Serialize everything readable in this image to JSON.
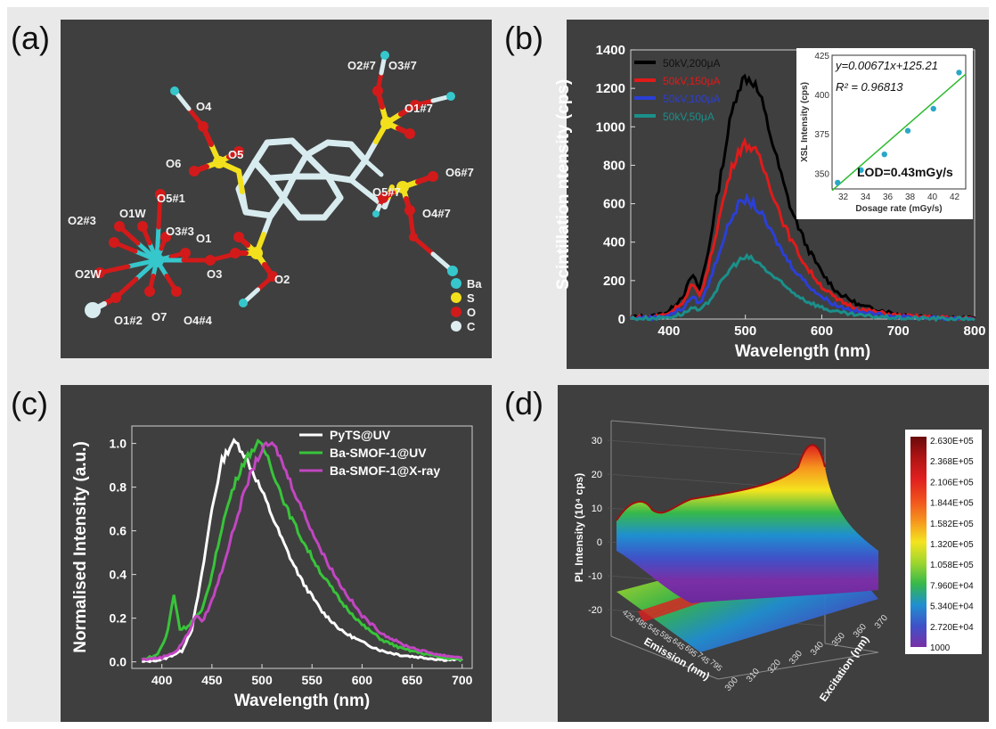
{
  "panel_labels": {
    "a": "(a)",
    "b": "(b)",
    "c": "(c)",
    "d": "(d)"
  },
  "panel_a": {
    "atom_labels": [
      "O2#7",
      "O3#7",
      "O1#7",
      "O4",
      "O6",
      "O5",
      "O6#7",
      "O5#7",
      "O4#7",
      "O5#1",
      "O2#3",
      "O1W",
      "O3#3",
      "O1",
      "O2W",
      "O3",
      "O2",
      "O7",
      "O1#2",
      "O4#4"
    ],
    "legend": [
      {
        "symbol": "Ba",
        "color": "#35c7cc"
      },
      {
        "symbol": "S",
        "color": "#f2e01d"
      },
      {
        "symbol": "O",
        "color": "#d21a1a"
      },
      {
        "symbol": "C",
        "color": "#dfeef0"
      }
    ]
  },
  "chart_data": [
    {
      "id": "b",
      "type": "line",
      "xlabel": "Wavelength (nm)",
      "ylabel": "Scintillation ntensity (cps)",
      "xlim": [
        350,
        800
      ],
      "ylim": [
        0,
        1400
      ],
      "xticks": [
        400,
        500,
        600,
        700,
        800
      ],
      "yticks": [
        0,
        200,
        400,
        600,
        800,
        1000,
        1200,
        1400
      ],
      "legend_position": "top-left",
      "series": [
        {
          "name": "50kV,200μA",
          "color": "#000000",
          "peak": 1260,
          "x": [
            350,
            380,
            400,
            420,
            430,
            440,
            450,
            460,
            470,
            480,
            490,
            500,
            510,
            520,
            530,
            540,
            550,
            560,
            580,
            600,
            620,
            650,
            700,
            750,
            800
          ],
          "y": [
            10,
            15,
            40,
            130,
            230,
            160,
            320,
            560,
            800,
            1030,
            1200,
            1260,
            1240,
            1150,
            1000,
            850,
            700,
            570,
            380,
            240,
            140,
            70,
            25,
            10,
            5
          ]
        },
        {
          "name": "50kV,150μA",
          "color": "#e11a1a",
          "peak": 910,
          "x": [
            350,
            380,
            400,
            420,
            430,
            440,
            450,
            460,
            470,
            480,
            490,
            500,
            510,
            520,
            530,
            540,
            550,
            560,
            580,
            600,
            620,
            650,
            700,
            750,
            800
          ],
          "y": [
            8,
            12,
            30,
            95,
            180,
            120,
            240,
            420,
            600,
            760,
            870,
            910,
            890,
            820,
            720,
            610,
            500,
            410,
            270,
            170,
            100,
            50,
            18,
            8,
            4
          ]
        },
        {
          "name": "50kV,100μA",
          "color": "#2b3fd6",
          "peak": 620,
          "x": [
            350,
            380,
            400,
            420,
            430,
            440,
            450,
            460,
            470,
            480,
            490,
            500,
            510,
            520,
            530,
            540,
            550,
            560,
            580,
            600,
            620,
            650,
            700,
            750,
            800
          ],
          "y": [
            5,
            8,
            20,
            60,
            120,
            80,
            160,
            280,
            400,
            510,
            590,
            620,
            600,
            550,
            480,
            410,
            340,
            280,
            185,
            115,
            70,
            35,
            12,
            5,
            3
          ]
        },
        {
          "name": "50kV,50μA",
          "color": "#1b8f8a",
          "peak": 320,
          "x": [
            350,
            380,
            400,
            420,
            430,
            440,
            450,
            460,
            470,
            480,
            490,
            500,
            510,
            520,
            530,
            540,
            550,
            560,
            580,
            600,
            620,
            650,
            700,
            750,
            800
          ],
          "y": [
            3,
            5,
            10,
            30,
            60,
            40,
            80,
            140,
            200,
            260,
            300,
            320,
            310,
            280,
            245,
            210,
            175,
            145,
            95,
            60,
            35,
            18,
            6,
            3,
            2
          ]
        }
      ],
      "inset": {
        "type": "scatter",
        "xlabel": "Dosage rate (mGy/s)",
        "ylabel": "XSL Intensity (cps)",
        "xlim": [
          31,
          43
        ],
        "ylim": [
          340,
          425
        ],
        "xticks": [
          32,
          34,
          36,
          38,
          40,
          42
        ],
        "yticks": [
          350,
          375,
          400,
          425
        ],
        "fit_equation": "y=0.00671x+125.21",
        "r2_label": "R² = 0.96813",
        "lod_label": "LOD=0.43mGy/s",
        "points": {
          "x": [
            31.5,
            33.6,
            35.7,
            37.8,
            40.1,
            42.4
          ],
          "y": [
            344,
            352,
            362,
            377,
            391,
            414
          ]
        },
        "fit_line": {
          "x": [
            31,
            43
          ],
          "y": [
            339,
            413
          ]
        }
      }
    },
    {
      "id": "c",
      "type": "line",
      "xlabel": "Wavelength (nm)",
      "ylabel": "Normalised Intensity (a.u.)",
      "xlim": [
        370,
        710
      ],
      "ylim": [
        -0.03,
        1.08
      ],
      "xticks": [
        400,
        450,
        500,
        550,
        600,
        650,
        700
      ],
      "yticks": [
        0.0,
        0.2,
        0.4,
        0.6,
        0.8,
        1.0
      ],
      "legend_position": "top-right",
      "series": [
        {
          "name": "PyTS@UV",
          "color": "#ffffff",
          "x": [
            380,
            400,
            420,
            430,
            440,
            450,
            460,
            470,
            475,
            480,
            490,
            500,
            510,
            520,
            530,
            540,
            550,
            560,
            580,
            600,
            620,
            640,
            660,
            680,
            700
          ],
          "y": [
            0,
            0.01,
            0.05,
            0.15,
            0.4,
            0.7,
            0.92,
            1.0,
            1.0,
            0.97,
            0.88,
            0.78,
            0.67,
            0.56,
            0.46,
            0.37,
            0.3,
            0.23,
            0.14,
            0.09,
            0.05,
            0.03,
            0.02,
            0.01,
            0.01
          ]
        },
        {
          "name": "Ba-SMOF-1@UV",
          "color": "#38c43a",
          "x": [
            380,
            395,
            405,
            412,
            418,
            425,
            435,
            440,
            450,
            460,
            470,
            480,
            490,
            497,
            505,
            515,
            525,
            540,
            560,
            580,
            600,
            620,
            640,
            660,
            680,
            700
          ],
          "y": [
            0.01,
            0.03,
            0.12,
            0.31,
            0.15,
            0.16,
            0.21,
            0.23,
            0.4,
            0.62,
            0.78,
            0.9,
            0.97,
            1.0,
            0.95,
            0.82,
            0.7,
            0.56,
            0.4,
            0.27,
            0.17,
            0.1,
            0.06,
            0.04,
            0.02,
            0.01
          ]
        },
        {
          "name": "Ba-SMOF-1@X-ray",
          "color": "#c246c2",
          "x": [
            380,
            400,
            415,
            425,
            435,
            440,
            450,
            460,
            470,
            480,
            490,
            500,
            508,
            515,
            525,
            540,
            560,
            580,
            600,
            620,
            640,
            660,
            680,
            700
          ],
          "y": [
            0.01,
            0.02,
            0.05,
            0.12,
            0.22,
            0.18,
            0.28,
            0.42,
            0.58,
            0.74,
            0.88,
            0.97,
            1.0,
            0.97,
            0.86,
            0.7,
            0.5,
            0.34,
            0.21,
            0.13,
            0.08,
            0.05,
            0.03,
            0.02
          ]
        }
      ]
    },
    {
      "id": "d",
      "type": "surface3d",
      "zlabel": "PL Intensity (10⁴ cps)",
      "xlabel": "Emission (nm)",
      "ylabel": "Excitation (nm)",
      "zticks": [
        30,
        20,
        10,
        0,
        -10,
        -20
      ],
      "emission_ticks": [
        "425",
        "495",
        "545",
        "595",
        "645",
        "695",
        "745",
        "795"
      ],
      "excitation_ticks": [
        "300",
        "310",
        "320",
        "330",
        "340",
        "350",
        "360",
        "370"
      ],
      "colorbar": {
        "labels": [
          "2.630E+05",
          "2.368E+05",
          "2.106E+05",
          "1.844E+05",
          "1.582E+05",
          "1.320E+05",
          "1.058E+05",
          "7.960E+04",
          "5.340E+04",
          "2.720E+04",
          "1000"
        ],
        "colors": [
          "#6a0a0a",
          "#b01414",
          "#e01f1f",
          "#f0501e",
          "#f6941e",
          "#f4e41e",
          "#9ed62e",
          "#36b84a",
          "#1f8fd0",
          "#3f52c8",
          "#7a2fa6"
        ]
      }
    }
  ]
}
